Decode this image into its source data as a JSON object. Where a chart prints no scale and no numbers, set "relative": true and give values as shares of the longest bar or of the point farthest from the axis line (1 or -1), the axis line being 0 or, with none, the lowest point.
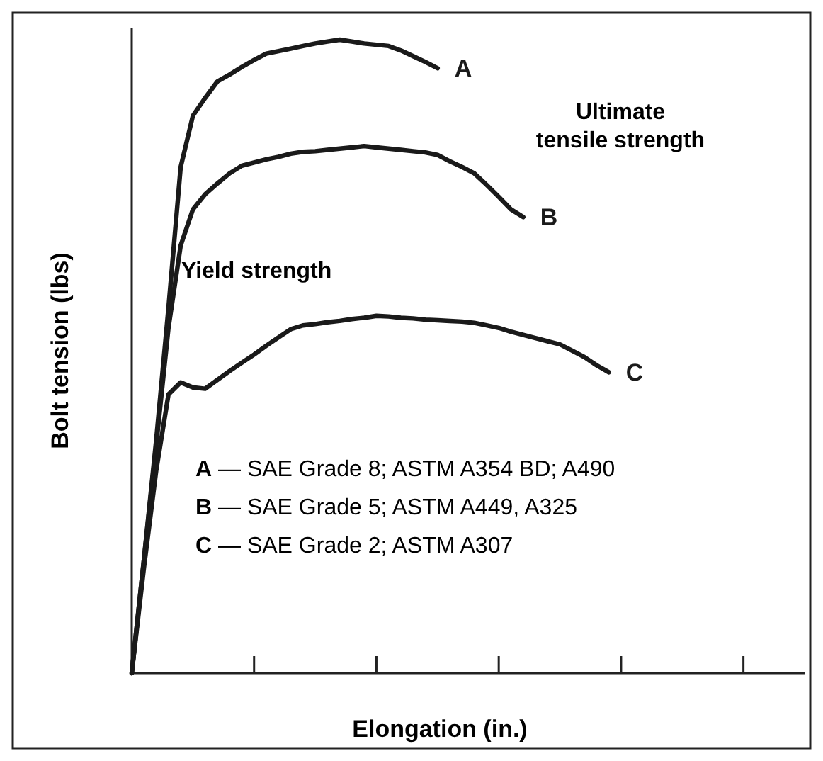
{
  "chart_data": {
    "type": "line",
    "relative": true,
    "xlabel": "Elongation (in.)",
    "ylabel": "Bolt tension (lbs)",
    "categories": [
      null,
      null,
      null,
      null,
      null,
      null,
      null,
      null,
      null,
      null,
      null,
      null,
      null,
      null,
      null,
      null,
      null,
      null,
      null,
      null,
      null,
      null,
      null,
      null,
      null,
      null,
      null,
      null,
      null,
      null,
      null,
      null,
      null,
      null,
      null,
      null,
      null,
      null,
      null,
      null,
      null,
      null,
      null,
      null,
      null,
      null,
      null,
      null,
      null,
      null,
      null,
      null,
      null,
      null,
      null
    ],
    "marker": "none",
    "line_style": "solid",
    "series": [
      {
        "name": "A",
        "color": "#1a1a1a",
        "values": [
          0,
          0.18,
          0.368,
          0.576,
          0.799,
          0.88,
          0.908,
          0.934,
          0.945,
          0.957,
          0.968,
          0.978,
          0.982,
          0.986,
          0.99,
          0.994,
          0.997,
          1,
          0.997,
          0.994,
          0.992,
          0.99,
          0.983,
          0.974,
          0.965,
          0.955,
          null,
          null,
          null,
          null,
          null,
          null,
          null,
          null,
          null,
          null,
          null,
          null,
          null,
          null,
          null,
          null,
          null,
          null,
          null,
          null,
          null,
          null,
          null,
          null,
          null,
          null,
          null,
          null,
          null
        ]
      },
      {
        "name": "B",
        "color": "#1a1a1a",
        "values": [
          0,
          0.18,
          0.36,
          0.545,
          0.675,
          0.732,
          0.756,
          0.773,
          0.789,
          0.801,
          0.806,
          0.811,
          0.815,
          0.82,
          0.823,
          0.824,
          0.826,
          0.828,
          0.83,
          0.832,
          0.83,
          0.828,
          0.826,
          0.824,
          0.822,
          0.818,
          0.808,
          0.799,
          0.789,
          0.771,
          0.752,
          0.732,
          0.72,
          null,
          null,
          null,
          null,
          null,
          null,
          null,
          null,
          null,
          null,
          null,
          null,
          null,
          null,
          null,
          null,
          null,
          null,
          null,
          null,
          null,
          null
        ]
      },
      {
        "name": "C",
        "color": "#1a1a1a",
        "values": [
          0,
          0.167,
          0.32,
          0.44,
          0.459,
          0.451,
          0.449,
          0.463,
          0.477,
          0.49,
          0.503,
          0.517,
          0.53,
          0.543,
          0.549,
          0.551,
          0.554,
          0.556,
          0.559,
          0.561,
          0.564,
          0.563,
          0.561,
          0.56,
          0.558,
          0.557,
          0.556,
          0.555,
          0.553,
          0.549,
          0.545,
          0.539,
          0.534,
          0.529,
          0.524,
          0.519,
          0.509,
          0.499,
          0.486,
          0.475,
          null,
          null,
          null,
          null,
          null,
          null,
          null,
          null,
          null,
          null,
          null,
          null,
          null,
          null,
          null
        ]
      }
    ],
    "annotations": [
      "Ultimate tensile strength",
      "Yield strength",
      "A — SAE Grade 8; ASTM A354 BD; A490",
      "B — SAE Grade 5; ASTM A449, A325",
      "C — SAE Grade 2; ASTM A307"
    ]
  }
}
